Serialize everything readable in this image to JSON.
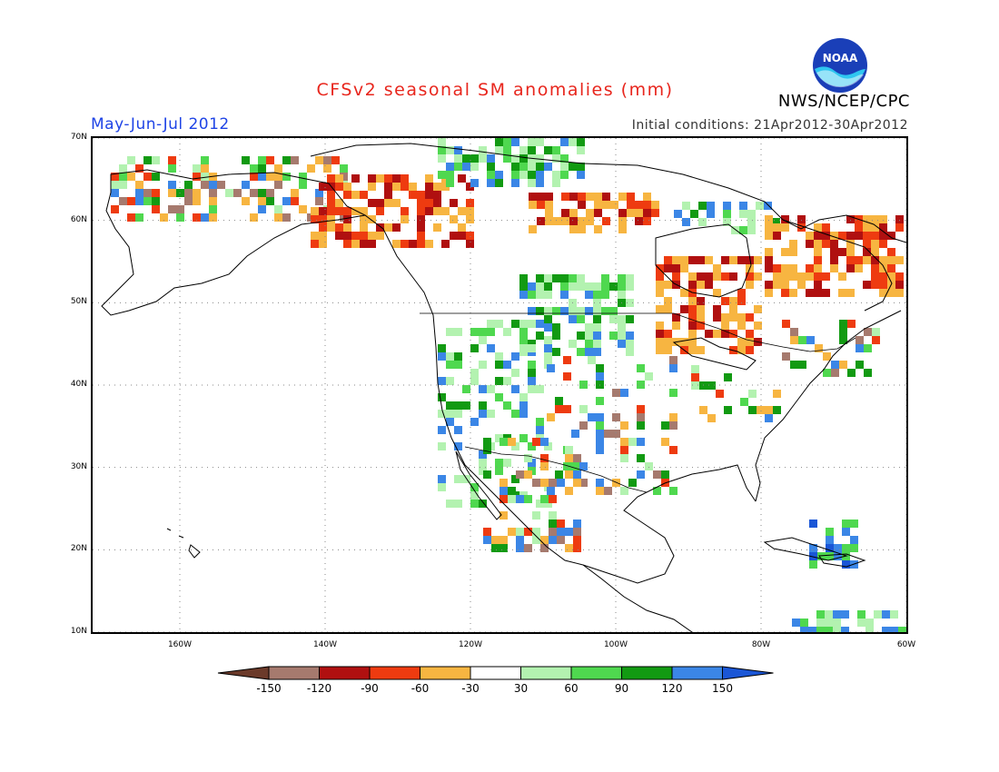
{
  "title": "CFSv2 seasonal SM anomalies (mm)",
  "period": "May-Jun-Jul 2012",
  "initial_conditions": "Initial conditions: 21Apr2012-30Apr2012",
  "agency": "NWS/NCEP/CPC",
  "logo_text": "NOAA",
  "map": {
    "lon_range": [
      -172,
      -60
    ],
    "lat_range": [
      10,
      70
    ],
    "lon_ticks": [
      "160W",
      "140W",
      "120W",
      "100W",
      "80W",
      "60W"
    ],
    "lat_ticks": [
      "70N",
      "60N",
      "50N",
      "40N",
      "30N",
      "20N",
      "10N"
    ],
    "grid": "dotted"
  },
  "legend": {
    "labels": [
      "-150",
      "-120",
      "-90",
      "-60",
      "-30",
      "30",
      "60",
      "90",
      "120",
      "150"
    ],
    "colors": [
      "#6b3a2a",
      "#a67a6e",
      "#b01010",
      "#ee3b10",
      "#f7b541",
      "#ffffff",
      "#b3f2b0",
      "#4fd84f",
      "#129a12",
      "#3b86e6",
      "#1a56d6"
    ]
  }
}
